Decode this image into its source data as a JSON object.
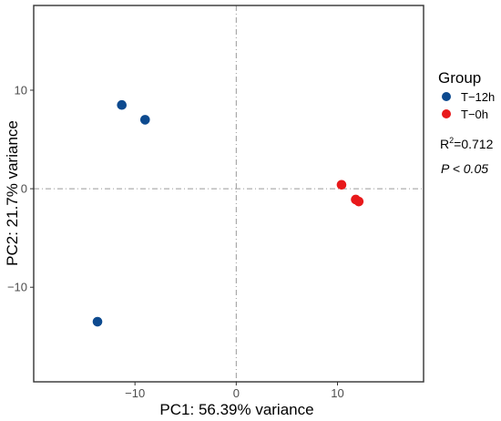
{
  "chart_data": {
    "type": "scatter",
    "xlabel": "PC1: 56.39% variance",
    "ylabel": "PC2: 21.7% variance",
    "xlim": [
      -20,
      18.5
    ],
    "ylim": [
      -19.6,
      18.6
    ],
    "xticks": [
      -10,
      0,
      10
    ],
    "yticks": [
      -10,
      0,
      10
    ],
    "grid": false,
    "reference_lines": {
      "x": 0,
      "y": 0,
      "style": "dash-dot"
    },
    "legend": {
      "title": "Group",
      "placement": "right",
      "entries": [
        "T−12h",
        "T−0h"
      ]
    },
    "series": [
      {
        "name": "T−12h",
        "color": "#0d4a8f",
        "points": [
          {
            "x": -11.3,
            "y": 8.5
          },
          {
            "x": -9.0,
            "y": 7.0
          },
          {
            "x": -13.7,
            "y": -13.5
          }
        ]
      },
      {
        "name": "T−0h",
        "color": "#e8191b",
        "points": [
          {
            "x": 10.4,
            "y": 0.4
          },
          {
            "x": 11.8,
            "y": -1.1
          },
          {
            "x": 12.1,
            "y": -1.3
          }
        ]
      }
    ],
    "annotations": {
      "r2_label": "R",
      "r2_sup": "2",
      "r2_value": "=0.712",
      "p_value": "P < 0.05"
    }
  }
}
